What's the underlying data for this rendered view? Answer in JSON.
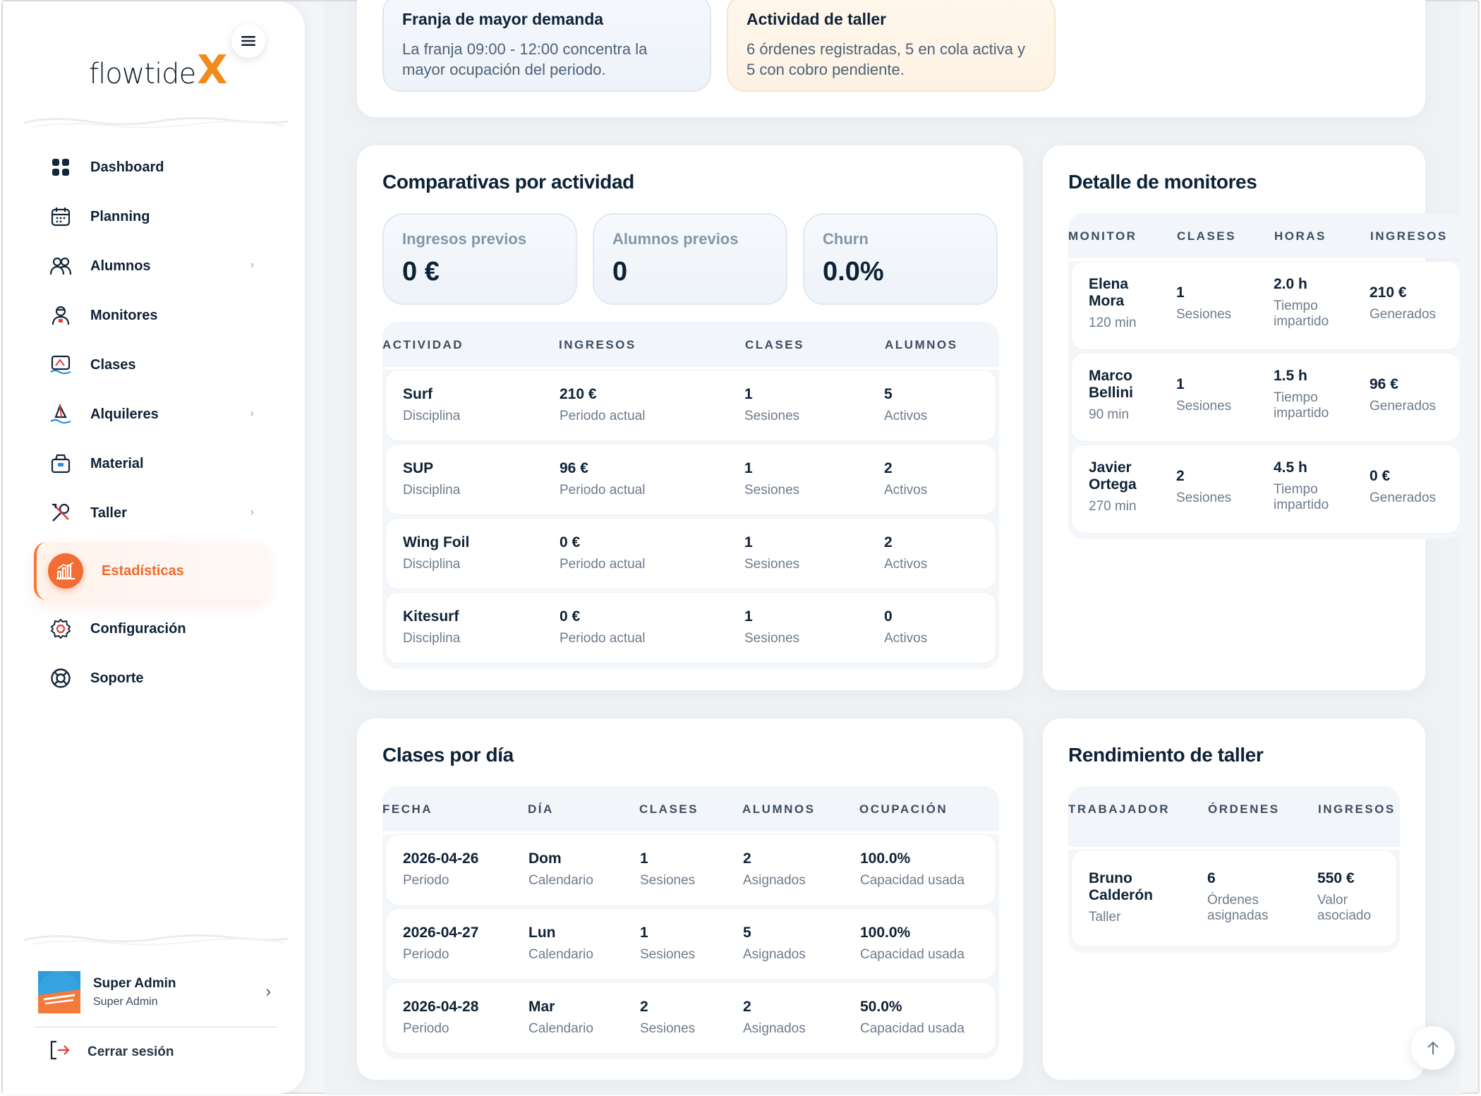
{
  "brand": {
    "logo_text": "flowtide",
    "logo_mark": "X"
  },
  "sidebar": {
    "items": [
      {
        "label": "Dashboard",
        "icon": "dashboard-icon",
        "chevron": false
      },
      {
        "label": "Planning",
        "icon": "calendar-icon",
        "chevron": false
      },
      {
        "label": "Alumnos",
        "icon": "users-icon",
        "chevron": true
      },
      {
        "label": "Monitores",
        "icon": "instructor-icon",
        "chevron": false
      },
      {
        "label": "Clases",
        "icon": "surf-class-icon",
        "chevron": false
      },
      {
        "label": "Alquileres",
        "icon": "windsurf-icon",
        "chevron": true
      },
      {
        "label": "Material",
        "icon": "box-icon",
        "chevron": false
      },
      {
        "label": "Taller",
        "icon": "tools-icon",
        "chevron": true
      },
      {
        "label": "Estadísticas",
        "icon": "bar-chart-icon",
        "chevron": false,
        "active": true
      },
      {
        "label": "Configuración",
        "icon": "settings-icon",
        "chevron": false
      },
      {
        "label": "Soporte",
        "icon": "lifebuoy-icon",
        "chevron": false
      }
    ],
    "user": {
      "name": "Super Admin",
      "role": "Super Admin"
    },
    "logout_label": "Cerrar sesión"
  },
  "insights": [
    {
      "title": "Franja de mayor demanda",
      "text": "La franja 09:00 - 12:00 concentra la mayor ocupación del periodo."
    },
    {
      "title": "Actividad de taller",
      "text": "6 órdenes registradas, 5 en cola activa y 5 con cobro pendiente."
    }
  ],
  "comparativas": {
    "title": "Comparativas por actividad",
    "kpis": [
      {
        "label": "Ingresos previos",
        "value": "0 €"
      },
      {
        "label": "Alumnos previos",
        "value": "0"
      },
      {
        "label": "Churn",
        "value": "0.0%"
      }
    ],
    "headers": [
      "ACTIVIDAD",
      "INGRESOS",
      "CLASES",
      "ALUMNOS"
    ],
    "rows": [
      {
        "activity": "Surf",
        "activity_sub": "Disciplina",
        "income": "210 €",
        "income_sub": "Periodo actual",
        "classes": "1",
        "classes_sub": "Sesiones",
        "students": "5",
        "students_sub": "Activos"
      },
      {
        "activity": "SUP",
        "activity_sub": "Disciplina",
        "income": "96 €",
        "income_sub": "Periodo actual",
        "classes": "1",
        "classes_sub": "Sesiones",
        "students": "2",
        "students_sub": "Activos"
      },
      {
        "activity": "Wing Foil",
        "activity_sub": "Disciplina",
        "income": "0 €",
        "income_sub": "Periodo actual",
        "classes": "1",
        "classes_sub": "Sesiones",
        "students": "2",
        "students_sub": "Activos"
      },
      {
        "activity": "Kitesurf",
        "activity_sub": "Disciplina",
        "income": "0 €",
        "income_sub": "Periodo actual",
        "classes": "1",
        "classes_sub": "Sesiones",
        "students": "0",
        "students_sub": "Activos"
      }
    ]
  },
  "monitores": {
    "title": "Detalle de monitores",
    "headers": [
      "MONITOR",
      "CLASES",
      "HORAS",
      "INGRESOS"
    ],
    "rows": [
      {
        "name1": "Elena",
        "name2": "Mora",
        "mins": "120 min",
        "classes": "1",
        "classes_sub": "Sesiones",
        "hours": "2.0 h",
        "hours_sub1": "Tiempo",
        "hours_sub2": "impartido",
        "income": "210 €",
        "income_sub": "Generados"
      },
      {
        "name1": "Marco",
        "name2": "Bellini",
        "mins": "90 min",
        "classes": "1",
        "classes_sub": "Sesiones",
        "hours": "1.5 h",
        "hours_sub1": "Tiempo",
        "hours_sub2": "impartido",
        "income": "96 €",
        "income_sub": "Generados"
      },
      {
        "name1": "Javier",
        "name2": "Ortega",
        "mins": "270 min",
        "classes": "2",
        "classes_sub": "Sesiones",
        "hours": "4.5 h",
        "hours_sub1": "Tiempo",
        "hours_sub2": "impartido",
        "income": "0 €",
        "income_sub": "Generados"
      }
    ]
  },
  "clases_dia": {
    "title": "Clases por día",
    "headers": [
      "FECHA",
      "DÍA",
      "CLASES",
      "ALUMNOS",
      "OCUPACIÓN"
    ],
    "rows": [
      {
        "date": "2026-04-26",
        "date_sub": "Periodo",
        "day": "Dom",
        "day_sub": "Calendario",
        "classes": "1",
        "classes_sub": "Sesiones",
        "students": "2",
        "students_sub": "Asignados",
        "occ": "100.0%",
        "occ_sub": "Capacidad usada"
      },
      {
        "date": "2026-04-27",
        "date_sub": "Periodo",
        "day": "Lun",
        "day_sub": "Calendario",
        "classes": "1",
        "classes_sub": "Sesiones",
        "students": "5",
        "students_sub": "Asignados",
        "occ": "100.0%",
        "occ_sub": "Capacidad usada"
      },
      {
        "date": "2026-04-28",
        "date_sub": "Periodo",
        "day": "Mar",
        "day_sub": "Calendario",
        "classes": "2",
        "classes_sub": "Sesiones",
        "students": "2",
        "students_sub": "Asignados",
        "occ": "50.0%",
        "occ_sub": "Capacidad usada"
      }
    ]
  },
  "taller": {
    "title": "Rendimiento de taller",
    "headers": [
      "TRABAJADOR",
      "ÓRDENES",
      "INGRESOS"
    ],
    "rows": [
      {
        "name1": "Bruno",
        "name2": "Calderón",
        "role": "Taller",
        "orders": "6",
        "orders_sub1": "Órdenes",
        "orders_sub2": "asignadas",
        "income": "550 €",
        "income_sub1": "Valor",
        "income_sub2": "asociado"
      }
    ]
  },
  "colors": {
    "accent": "#f26d33",
    "logo_accent": "#f28a1c",
    "text": "#0e2236",
    "muted": "#6d7c8e"
  }
}
